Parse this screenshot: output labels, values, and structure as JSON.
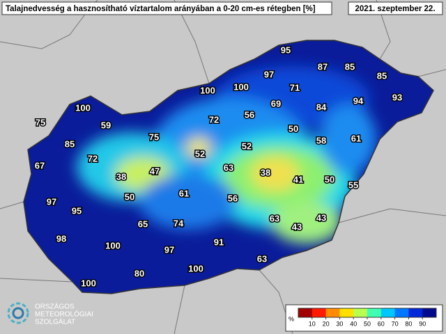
{
  "header": {
    "title": "Talajnedvesség a hasznosítható víztartalom arányában a 0-20 cm-es rétegben [%]",
    "date": "2021. szeptember 22."
  },
  "map_labels": [
    95,
    87,
    85,
    85,
    97,
    100,
    100,
    71,
    94,
    93,
    100,
    69,
    84,
    56,
    75,
    59,
    72,
    50,
    58,
    61,
    85,
    75,
    52,
    72,
    52,
    67,
    63,
    38,
    47,
    38,
    41,
    50,
    55,
    61,
    50,
    56,
    97,
    95,
    63,
    43,
    65,
    74,
    43,
    98,
    91,
    100,
    97,
    63,
    100,
    80,
    100
  ],
  "colorbar": {
    "unit": "%",
    "range": [
      0,
      100
    ],
    "ticks": [
      10,
      20,
      30,
      40,
      50,
      60,
      70,
      80,
      90
    ],
    "colors": [
      "#a00000",
      "#ff1a00",
      "#ff8c00",
      "#ffe000",
      "#b8ff50",
      "#40ffb0",
      "#00c8ff",
      "#0078ff",
      "#0028d8",
      "#000a8c"
    ]
  },
  "logo": {
    "lines": [
      "ORSZÁGOS",
      "METEOROLÓGIAI",
      "SZOLGÁLAT"
    ]
  }
}
